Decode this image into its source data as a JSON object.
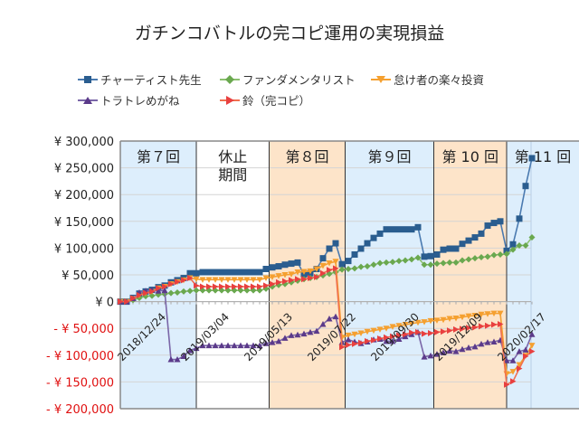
{
  "chart_data": {
    "type": "line",
    "title": "ガチンコバトルの完コピ運用の実現損益",
    "x_tick_labels": [
      "2018/12/24",
      "2019/03/04",
      "2019/05/13",
      "2019/07/22",
      "2019/09/30",
      "2019/12/09",
      "2020/02/17"
    ],
    "x_tick_every": 10,
    "ylim": [
      -200000,
      300000
    ],
    "y_tick_labels": [
      "¥ 300,000",
      "¥ 250,000",
      "¥ 200,000",
      "¥ 150,000",
      "¥ 100,000",
      "¥ 50,000",
      "¥ 0",
      "- ¥ 50,000",
      "- ¥ 100,000",
      "- ¥ 150,000",
      "- ¥ 200,000"
    ],
    "y_ticks": [
      300000,
      250000,
      200000,
      150000,
      100000,
      50000,
      0,
      -50000,
      -100000,
      -150000,
      -200000
    ],
    "negative_label_color": "#e01010",
    "grid": true,
    "legend_position": "top",
    "periods": [
      {
        "label": "第７回",
        "start": 0,
        "end": 12,
        "color": "#ddeefc"
      },
      {
        "label": "休止\n期間",
        "start": 12,
        "end": 23.5,
        "color": "#ffffff"
      },
      {
        "label": "第８回",
        "start": 23.5,
        "end": 35.5,
        "color": "#fde4c9"
      },
      {
        "label": "第９回",
        "start": 35.5,
        "end": 49.5,
        "color": "#ddeefc"
      },
      {
        "label": "第 10 回",
        "start": 49.5,
        "end": 61,
        "color": "#fde4c9"
      },
      {
        "label": "第 11 回",
        "start": 61,
        "end": 72.5,
        "color": "#ddeefc"
      }
    ],
    "series": [
      {
        "name": "チャーティスト先生",
        "color": "#2a5d8f",
        "line_color": "#4a7ab0",
        "marker": "square",
        "values": [
          0,
          0,
          7000,
          15000,
          19000,
          22000,
          27000,
          30000,
          36000,
          40000,
          44000,
          53000,
          53000,
          55000,
          55000,
          55000,
          55000,
          55000,
          55000,
          55000,
          55000,
          55000,
          55000,
          61000,
          64000,
          66000,
          69000,
          71000,
          73000,
          51000,
          53000,
          61000,
          81000,
          99000,
          109000,
          70000,
          76000,
          88000,
          99000,
          109000,
          119000,
          127000,
          135000,
          135000,
          135000,
          135000,
          135000,
          139000,
          84000,
          85000,
          88000,
          97000,
          99000,
          99000,
          108000,
          114000,
          120000,
          127000,
          142000,
          147000,
          150000,
          95000,
          107000,
          155000,
          216000,
          268000
        ]
      },
      {
        "name": "ファンダメンタリスト",
        "color": "#6aa84f",
        "line_color": "#8cc070",
        "marker": "diamond",
        "values": [
          0,
          0,
          3000,
          7000,
          10000,
          11000,
          13000,
          14000,
          16000,
          17000,
          19000,
          20000,
          21000,
          21000,
          21000,
          21000,
          21000,
          21000,
          21000,
          21000,
          21000,
          21000,
          21000,
          24000,
          28000,
          31000,
          33000,
          36000,
          39000,
          42000,
          44000,
          46000,
          49000,
          52000,
          55000,
          60000,
          61000,
          62000,
          65000,
          66000,
          69000,
          72000,
          73000,
          74000,
          76000,
          77000,
          79000,
          82000,
          69000,
          69000,
          71000,
          72000,
          73000,
          73000,
          77000,
          79000,
          81000,
          83000,
          84000,
          87000,
          88000,
          89000,
          97000,
          105000,
          105000,
          120000
        ]
      },
      {
        "name": "怠け者の楽々投資",
        "color": "#f5a030",
        "line_color": "#f5a030",
        "marker": "triangle-down",
        "values": [
          0,
          0,
          6000,
          12000,
          16000,
          19000,
          25000,
          28000,
          33000,
          37000,
          40000,
          44000,
          42000,
          41000,
          41000,
          41000,
          41000,
          41000,
          41000,
          41000,
          41000,
          41000,
          41000,
          44000,
          46000,
          48000,
          50000,
          51000,
          55000,
          56000,
          57000,
          61000,
          67000,
          72000,
          75000,
          -67000,
          -63000,
          -61000,
          -59000,
          -56000,
          -54000,
          -52000,
          -50000,
          -47000,
          -45000,
          -43000,
          -41000,
          -39000,
          -38000,
          -36000,
          -35000,
          -34000,
          -32000,
          -31000,
          -29000,
          -27000,
          -26000,
          -24000,
          -23000,
          -22000,
          -22000,
          -135000,
          -131000,
          -118000,
          -101000,
          -82000
        ]
      },
      {
        "name": "トラトレめがね",
        "color": "#5b3a8a",
        "line_color": "#7a66a8",
        "marker": "triangle-up",
        "values": [
          0,
          0,
          6000,
          17000,
          20000,
          22000,
          20000,
          21000,
          -108000,
          -108000,
          -102000,
          -91000,
          -87000,
          -82000,
          -82000,
          -82000,
          -82000,
          -82000,
          -82000,
          -82000,
          -82000,
          -82000,
          -82000,
          -78000,
          -76000,
          -74000,
          -68000,
          -63000,
          -62000,
          -60000,
          -57000,
          -55000,
          -42000,
          -32000,
          -28000,
          -76000,
          -71000,
          -75000,
          -78000,
          -75000,
          -71000,
          -70000,
          -74000,
          -74000,
          -70000,
          -65000,
          -61000,
          -57000,
          -103000,
          -101000,
          -98000,
          -95000,
          -92000,
          -93000,
          -89000,
          -86000,
          -84000,
          -79000,
          -76000,
          -75000,
          -72000,
          -110000,
          -110000,
          -93000,
          -90000,
          -61000
        ]
      },
      {
        "name": "鈴（完コピ）",
        "color": "#e84040",
        "line_color": "#f07050",
        "marker": "triangle-right",
        "values": [
          0,
          0,
          6000,
          12000,
          16000,
          19000,
          25000,
          28000,
          33000,
          37000,
          40000,
          44000,
          30000,
          28000,
          28000,
          28000,
          28000,
          28000,
          28000,
          28000,
          28000,
          28000,
          28000,
          30000,
          33000,
          36000,
          38000,
          40000,
          42000,
          42000,
          44000,
          46000,
          53000,
          59000,
          62000,
          -85000,
          -81000,
          -79000,
          -77000,
          -74000,
          -72000,
          -69000,
          -67000,
          -65000,
          -63000,
          -61000,
          -58000,
          -57000,
          -60000,
          -59000,
          -57000,
          -56000,
          -54000,
          -52000,
          -51000,
          -49000,
          -48000,
          -46000,
          -45000,
          -43000,
          -42000,
          -155000,
          -149000,
          -125000,
          -102000,
          -93000
        ]
      }
    ]
  }
}
